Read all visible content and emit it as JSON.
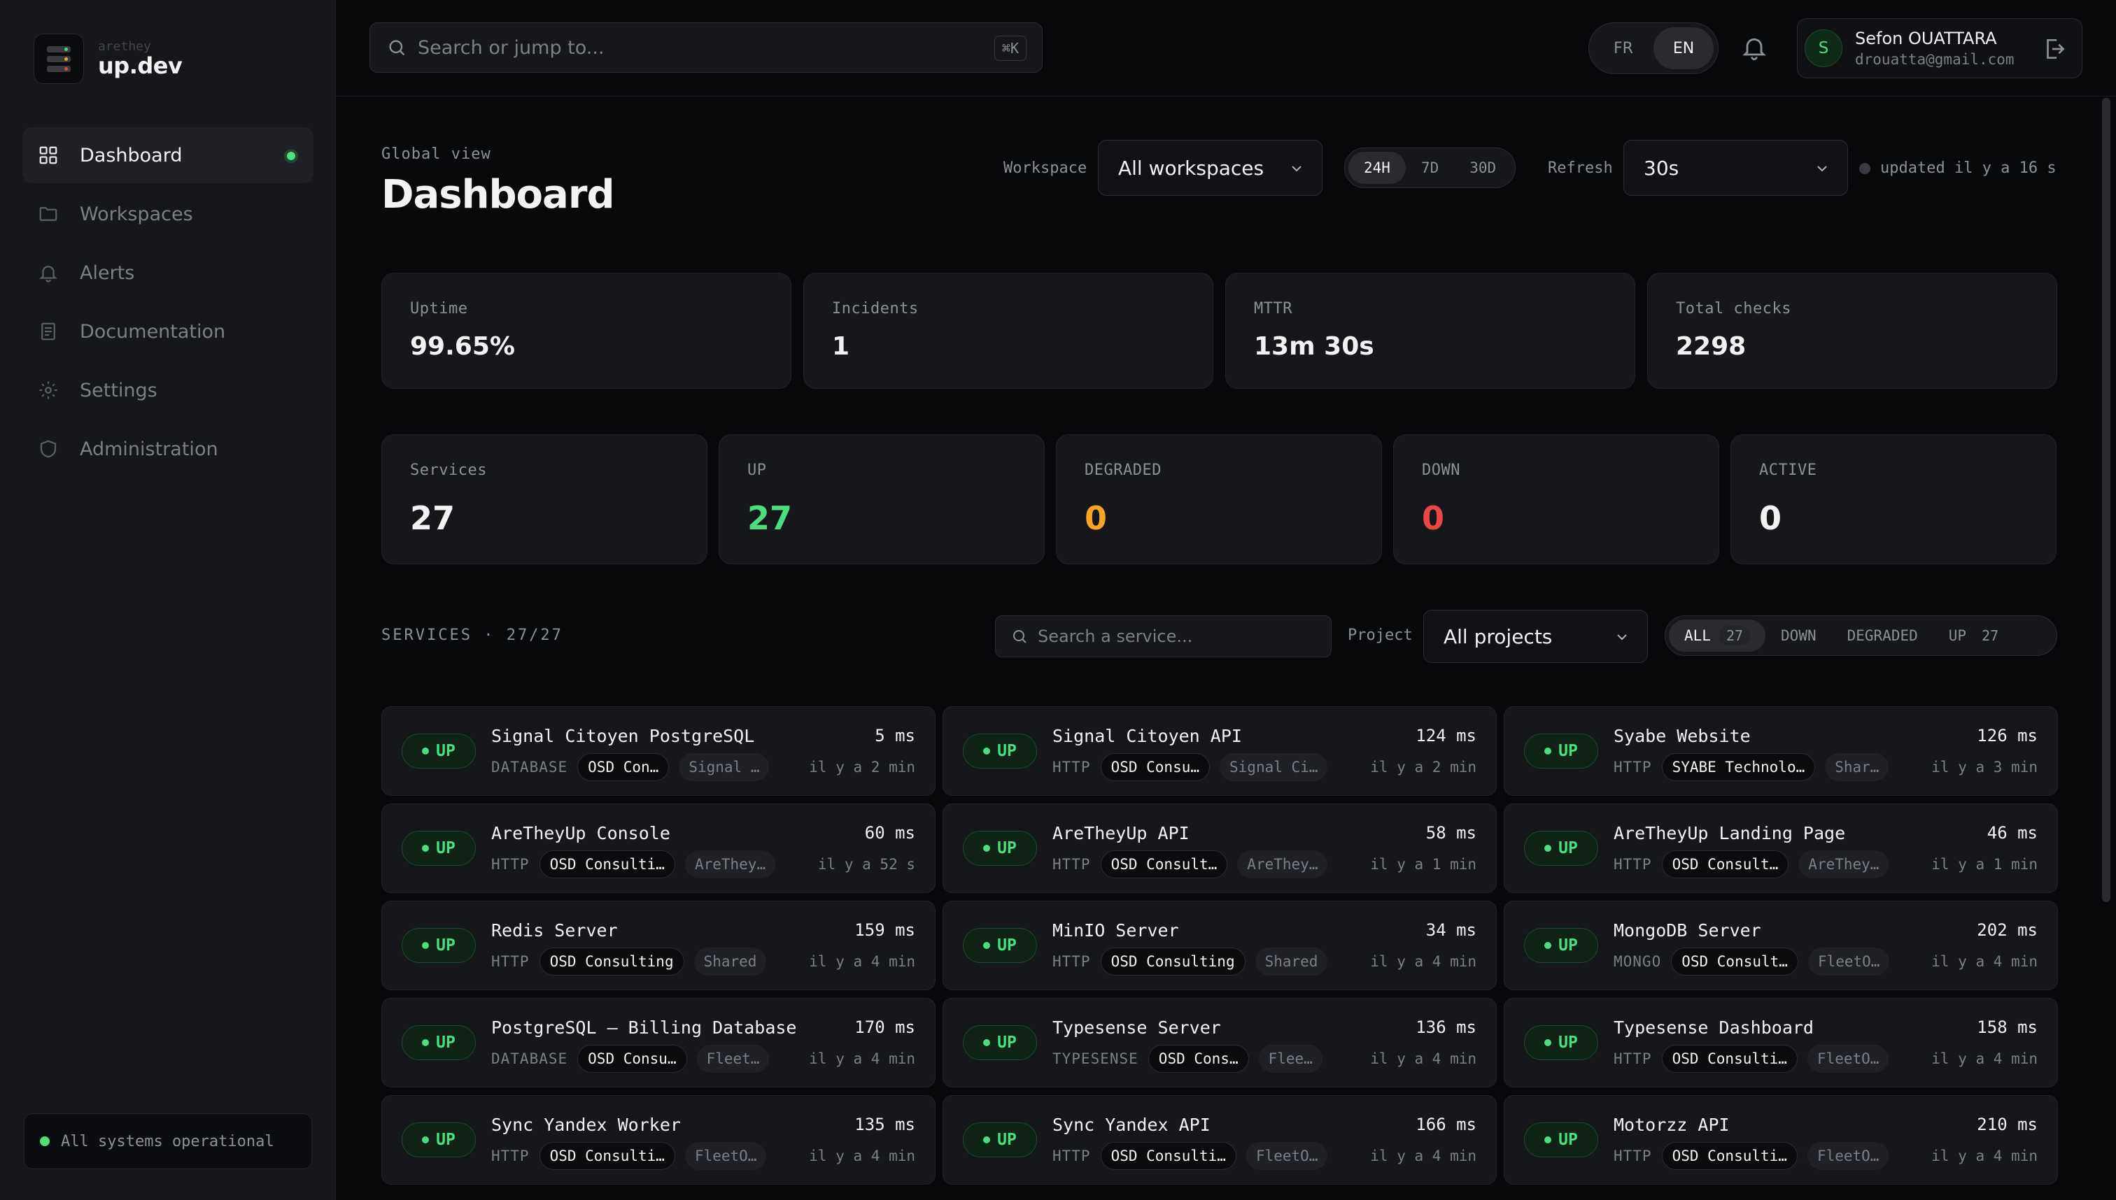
{
  "logo": {
    "small": "arethey",
    "big": "up.dev"
  },
  "nav": [
    {
      "label": "Dashboard",
      "icon": "grid-icon",
      "active": true
    },
    {
      "label": "Workspaces",
      "icon": "folder-icon"
    },
    {
      "label": "Alerts",
      "icon": "bell-icon"
    },
    {
      "label": "Documentation",
      "icon": "book-icon"
    },
    {
      "label": "Settings",
      "icon": "gear-icon"
    },
    {
      "label": "Administration",
      "icon": "shield-icon"
    }
  ],
  "system_status": "All systems operational",
  "topbar": {
    "search_placeholder": "Search or jump to...",
    "shortcut": "⌘K",
    "lang": [
      "FR",
      "EN"
    ],
    "user": {
      "initial": "S",
      "name": "Sefon OUATTARA",
      "email": "drouatta@gmail.com"
    }
  },
  "header": {
    "eyebrow": "Global view",
    "title": "Dashboard",
    "workspace_label": "Workspace",
    "workspace_value": "All workspaces",
    "ranges": [
      "24H",
      "7D",
      "30D"
    ],
    "refresh_label": "Refresh",
    "refresh_value": "30s",
    "updated": "updated il y a 16 s"
  },
  "kpis": [
    {
      "label": "Uptime",
      "value": "99.65%"
    },
    {
      "label": "Incidents",
      "value": "1"
    },
    {
      "label": "MTTR",
      "value": "13m 30s"
    },
    {
      "label": "Total checks",
      "value": "2298"
    }
  ],
  "stats": [
    {
      "label": "Services",
      "value": "27"
    },
    {
      "label": "UP",
      "value": "27"
    },
    {
      "label": "DEGRADED",
      "value": "0"
    },
    {
      "label": "DOWN",
      "value": "0"
    },
    {
      "label": "ACTIVE",
      "value": "0"
    }
  ],
  "colors": {
    "up": "#4ade80",
    "degraded": "#f5a524",
    "down": "#ef4444"
  },
  "services_section": {
    "title": "SERVICES · 27/27",
    "search_placeholder": "Search a service...",
    "project_label": "Project",
    "project_value": "All projects",
    "filters": {
      "all": "ALL",
      "all_count": "27",
      "down": "DOWN",
      "degraded": "DEGRADED",
      "up": "UP",
      "up_count": "27"
    }
  },
  "services": [
    {
      "status": "UP",
      "name": "Signal Citoyen PostgreSQL",
      "ms": "5 ms",
      "type": "DATABASE",
      "org": "OSD Con…",
      "proj": "Signal …",
      "ago": "il y a 2 min"
    },
    {
      "status": "UP",
      "name": "Signal Citoyen API",
      "ms": "124 ms",
      "type": "HTTP",
      "org": "OSD Consu…",
      "proj": "Signal Ci…",
      "ago": "il y a 2 min"
    },
    {
      "status": "UP",
      "name": "Syabe Website",
      "ms": "126 ms",
      "type": "HTTP",
      "org": "SYABE Technolo…",
      "proj": "Shar…",
      "ago": "il y a 3 min"
    },
    {
      "status": "UP",
      "name": "AreTheyUp Console",
      "ms": "60 ms",
      "type": "HTTP",
      "org": "OSD Consulti…",
      "proj": "AreThey…",
      "ago": "il y a 52 s"
    },
    {
      "status": "UP",
      "name": "AreTheyUp API",
      "ms": "58 ms",
      "type": "HTTP",
      "org": "OSD Consult…",
      "proj": "AreThey…",
      "ago": "il y a 1 min"
    },
    {
      "status": "UP",
      "name": "AreTheyUp Landing Page",
      "ms": "46 ms",
      "type": "HTTP",
      "org": "OSD Consult…",
      "proj": "AreThey…",
      "ago": "il y a 1 min"
    },
    {
      "status": "UP",
      "name": "Redis Server",
      "ms": "159 ms",
      "type": "HTTP",
      "org": "OSD Consulting",
      "proj": "Shared",
      "ago": "il y a 4 min"
    },
    {
      "status": "UP",
      "name": "MinIO Server",
      "ms": "34 ms",
      "type": "HTTP",
      "org": "OSD Consulting",
      "proj": "Shared",
      "ago": "il y a 4 min"
    },
    {
      "status": "UP",
      "name": "MongoDB Server",
      "ms": "202 ms",
      "type": "MONGO",
      "org": "OSD Consult…",
      "proj": "FleetO…",
      "ago": "il y a 4 min"
    },
    {
      "status": "UP",
      "name": "PostgreSQL — Billing Database",
      "ms": "170 ms",
      "type": "DATABASE",
      "org": "OSD Consu…",
      "proj": "Fleet…",
      "ago": "il y a 4 min"
    },
    {
      "status": "UP",
      "name": "Typesense Server",
      "ms": "136 ms",
      "type": "TYPESENSE",
      "org": "OSD Cons…",
      "proj": "Flee…",
      "ago": "il y a 4 min"
    },
    {
      "status": "UP",
      "name": "Typesense Dashboard",
      "ms": "158 ms",
      "type": "HTTP",
      "org": "OSD Consulti…",
      "proj": "FleetO…",
      "ago": "il y a 4 min"
    },
    {
      "status": "UP",
      "name": "Sync Yandex Worker",
      "ms": "135 ms",
      "type": "HTTP",
      "org": "OSD Consulti…",
      "proj": "FleetO…",
      "ago": "il y a 4 min"
    },
    {
      "status": "UP",
      "name": "Sync Yandex API",
      "ms": "166 ms",
      "type": "HTTP",
      "org": "OSD Consulti…",
      "proj": "FleetO…",
      "ago": "il y a 4 min"
    },
    {
      "status": "UP",
      "name": "Motorzz API",
      "ms": "210 ms",
      "type": "HTTP",
      "org": "OSD Consulti…",
      "proj": "FleetO…",
      "ago": "il y a 4 min"
    }
  ]
}
